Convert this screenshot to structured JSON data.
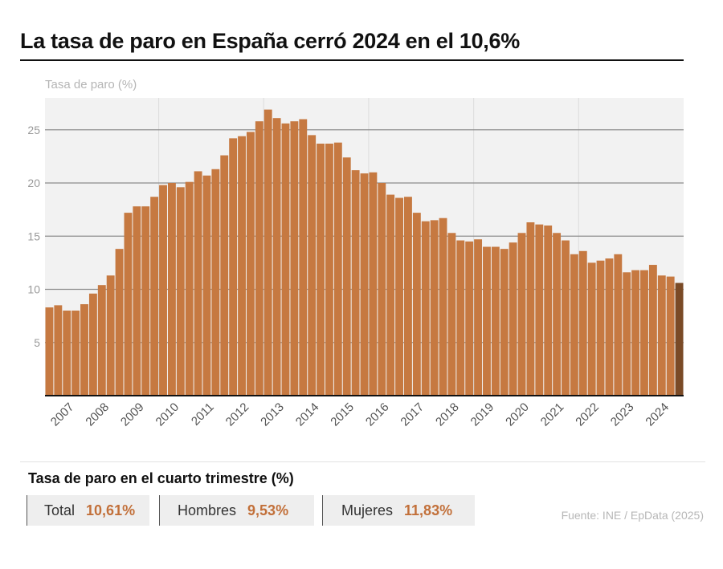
{
  "title": "La tasa de paro en España cerró 2024 en el 10,6%",
  "chart_data": {
    "type": "bar",
    "ylabel": "Tasa de paro (%)",
    "ylim": [
      0,
      28
    ],
    "yticks": [
      5,
      10,
      15,
      20,
      25
    ],
    "grid": true,
    "x_tick_labels": [
      "2007",
      "2008",
      "2009",
      "2010",
      "2011",
      "2012",
      "2013",
      "2014",
      "2015",
      "2016",
      "2017",
      "2018",
      "2019",
      "2020",
      "2021",
      "2022",
      "2023",
      "2024"
    ],
    "categories": [
      "2006-T4",
      "2007-T1",
      "2007-T2",
      "2007-T3",
      "2007-T4",
      "2008-T1",
      "2008-T2",
      "2008-T3",
      "2008-T4",
      "2009-T1",
      "2009-T2",
      "2009-T3",
      "2009-T4",
      "2010-T1",
      "2010-T2",
      "2010-T3",
      "2010-T4",
      "2011-T1",
      "2011-T2",
      "2011-T3",
      "2011-T4",
      "2012-T1",
      "2012-T2",
      "2012-T3",
      "2012-T4",
      "2013-T1",
      "2013-T2",
      "2013-T3",
      "2013-T4",
      "2014-T1",
      "2014-T2",
      "2014-T3",
      "2014-T4",
      "2015-T1",
      "2015-T2",
      "2015-T3",
      "2015-T4",
      "2016-T1",
      "2016-T2",
      "2016-T3",
      "2016-T4",
      "2017-T1",
      "2017-T2",
      "2017-T3",
      "2017-T4",
      "2018-T1",
      "2018-T2",
      "2018-T3",
      "2018-T4",
      "2019-T1",
      "2019-T2",
      "2019-T3",
      "2019-T4",
      "2020-T1",
      "2020-T2",
      "2020-T3",
      "2020-T4",
      "2021-T1",
      "2021-T2",
      "2021-T3",
      "2021-T4",
      "2022-T1",
      "2022-T2",
      "2022-T3",
      "2022-T4",
      "2023-T1",
      "2023-T2",
      "2023-T3",
      "2023-T4",
      "2024-T1",
      "2024-T2",
      "2024-T3",
      "2024-T4"
    ],
    "values": [
      8.3,
      8.5,
      8.0,
      8.0,
      8.6,
      9.6,
      10.4,
      11.3,
      13.8,
      17.2,
      17.8,
      17.8,
      18.7,
      19.8,
      20.0,
      19.6,
      20.1,
      21.1,
      20.7,
      21.3,
      22.6,
      24.2,
      24.4,
      24.8,
      25.8,
      26.9,
      26.1,
      25.6,
      25.8,
      26.0,
      24.5,
      23.7,
      23.7,
      23.8,
      22.4,
      21.2,
      20.9,
      21.0,
      20.0,
      18.9,
      18.6,
      18.7,
      17.2,
      16.4,
      16.5,
      16.7,
      15.3,
      14.6,
      14.5,
      14.7,
      14.0,
      14.0,
      13.8,
      14.4,
      15.3,
      16.3,
      16.1,
      16.0,
      15.3,
      14.6,
      13.3,
      13.6,
      12.5,
      12.7,
      12.9,
      13.3,
      11.6,
      11.8,
      11.8,
      12.3,
      11.3,
      11.2,
      10.6
    ],
    "bar_color": "#c67941",
    "highlight_color": "#7a4a26",
    "grid_color": "#8c8c8c",
    "plot_background": "#f2f2f2"
  },
  "summary": {
    "title": "Tasa de paro en el cuarto trimestre (%)",
    "items": [
      {
        "label": "Total",
        "value": "10,61%"
      },
      {
        "label": "Hombres",
        "value": "9,53%"
      },
      {
        "label": "Mujeres",
        "value": "11,83%"
      }
    ],
    "value_color": "#c2703a"
  },
  "source": "Fuente: INE / EpData (2025)"
}
